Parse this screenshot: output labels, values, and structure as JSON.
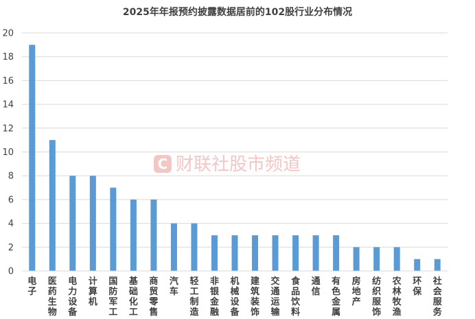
{
  "chart_data": {
    "type": "bar",
    "title": "2025年年报预约披露数据居前的102股行业分布情况",
    "categories": [
      "电子",
      "医药生物",
      "电力设备",
      "计算机",
      "国防军工",
      "基础化工",
      "商贸零售",
      "汽车",
      "轻工制造",
      "非银金融",
      "机械设备",
      "建筑装饰",
      "交通运输",
      "食品饮料",
      "通信",
      "有色金属",
      "房地产",
      "纺织服饰",
      "农林牧渔",
      "环保",
      "社会服务"
    ],
    "values": [
      19,
      11,
      8,
      8,
      7,
      6,
      6,
      4,
      4,
      3,
      3,
      3,
      3,
      3,
      3,
      3,
      2,
      2,
      2,
      1,
      1
    ],
    "ylim": [
      0,
      20
    ],
    "yticks": [
      0,
      2,
      4,
      6,
      8,
      10,
      12,
      14,
      16,
      18,
      20
    ],
    "grid": true,
    "legend": "none",
    "bar_color": "#5b9bd5",
    "grid_color": "#d9d9d9"
  },
  "watermark": {
    "logo_letter": "C",
    "text": "财联社股市频道",
    "color": "#f2c7c4"
  }
}
